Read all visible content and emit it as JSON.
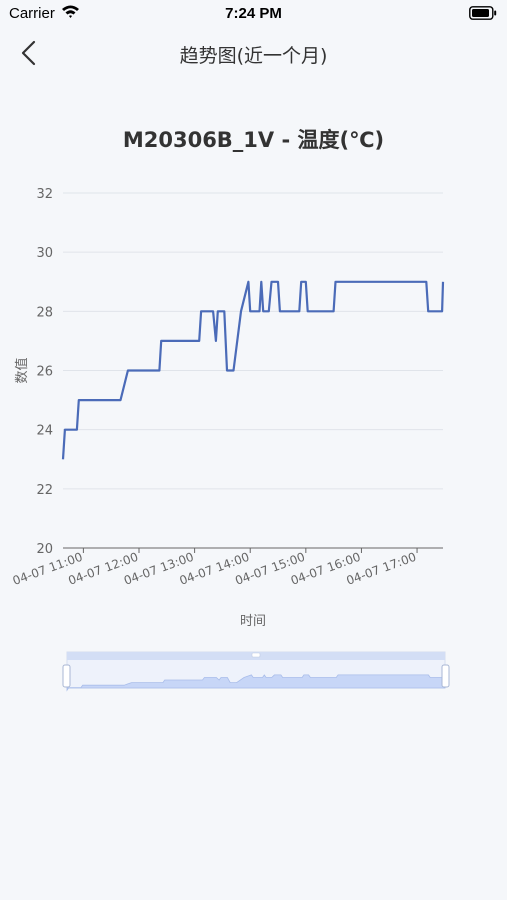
{
  "status_bar": {
    "carrier": "Carrier",
    "time": "7:24 PM"
  },
  "nav": {
    "title": "趋势图(近一个月)",
    "back_icon": "chevron-left-icon"
  },
  "colors": {
    "line": "#4b6bb8",
    "grid": "#e0e4ea",
    "axis": "#666666",
    "slider_fill": "#dbe5fb"
  },
  "chart_data": {
    "type": "line",
    "title": "M20306B_1V - 温度(℃)",
    "xlabel": "时间",
    "ylabel": "数值",
    "ylim": [
      20,
      32
    ],
    "yticks": [
      20,
      22,
      24,
      26,
      28,
      30,
      32
    ],
    "xticks": [
      "04-07 11:00",
      "04-07 12:00",
      "04-07 13:00",
      "04-07 14:00",
      "04-07 15:00",
      "04-07 16:00",
      "04-07 17:00"
    ],
    "grid": true,
    "series": [
      {
        "values": [
          [
            "04-07 10:38",
            23
          ],
          [
            "04-07 10:40",
            24
          ],
          [
            "04-07 10:53",
            24
          ],
          [
            "04-07 10:55",
            25
          ],
          [
            "04-07 11:40",
            25
          ],
          [
            "04-07 11:48",
            26
          ],
          [
            "04-07 12:22",
            26
          ],
          [
            "04-07 12:24",
            27
          ],
          [
            "04-07 13:05",
            27
          ],
          [
            "04-07 13:07",
            28
          ],
          [
            "04-07 13:20",
            28
          ],
          [
            "04-07 13:23",
            27
          ],
          [
            "04-07 13:25",
            28
          ],
          [
            "04-07 13:32",
            28
          ],
          [
            "04-07 13:35",
            26
          ],
          [
            "04-07 13:42",
            26
          ],
          [
            "04-07 13:50",
            28
          ],
          [
            "04-07 13:58",
            29
          ],
          [
            "04-07 14:00",
            28
          ],
          [
            "04-07 14:10",
            28
          ],
          [
            "04-07 14:12",
            29
          ],
          [
            "04-07 14:14",
            28
          ],
          [
            "04-07 14:20",
            28
          ],
          [
            "04-07 14:23",
            29
          ],
          [
            "04-07 14:30",
            29
          ],
          [
            "04-07 14:32",
            28
          ],
          [
            "04-07 14:53",
            28
          ],
          [
            "04-07 14:55",
            29
          ],
          [
            "04-07 15:00",
            29
          ],
          [
            "04-07 15:02",
            28
          ],
          [
            "04-07 15:30",
            28
          ],
          [
            "04-07 15:32",
            29
          ],
          [
            "04-07 17:10",
            29
          ],
          [
            "04-07 17:12",
            28
          ],
          [
            "04-07 17:27",
            28
          ],
          [
            "04-07 17:28",
            29
          ]
        ]
      }
    ],
    "x_domain": [
      "04-07 10:38",
      "04-07 17:28"
    ]
  },
  "zoom_slider": {
    "start_pct": 0,
    "end_pct": 100
  }
}
